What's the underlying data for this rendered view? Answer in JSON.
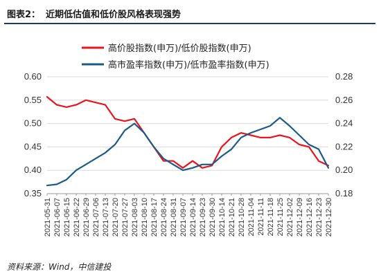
{
  "figure": {
    "label": "图表2：",
    "title": "近期低估值和低价股风格表现强势",
    "source": "资料来源：Wind，中信建投"
  },
  "chart_data": {
    "type": "line",
    "x": [
      "2021-05-31",
      "2021-06-07",
      "2021-06-15",
      "2021-06-22",
      "2021-06-29",
      "2021-07-06",
      "2021-07-13",
      "2021-07-20",
      "2021-07-27",
      "2021-08-03",
      "2021-08-10",
      "2021-08-17",
      "2021-08-24",
      "2021-08-31",
      "2021-09-07",
      "2021-09-14",
      "2021-09-23",
      "2021-09-30",
      "2021-10-14",
      "2021-10-21",
      "2021-10-28",
      "2021-11-04",
      "2021-11-11",
      "2021-11-18",
      "2021-11-25",
      "2021-12-02",
      "2021-12-09",
      "2021-12-16",
      "2021-12-23",
      "2021-12-30"
    ],
    "left_axis": {
      "ylim": [
        0.35,
        0.6
      ],
      "ticks": [
        "0.35",
        "0.40",
        "0.45",
        "0.50",
        "0.55",
        "0.60"
      ]
    },
    "right_axis": {
      "ylim": [
        0.18,
        0.28
      ],
      "ticks": [
        "0.18",
        "0.20",
        "0.22",
        "0.24",
        "0.26",
        "0.28"
      ]
    },
    "legend_placement": "top-center",
    "series": [
      {
        "name": "高价股指数(申万)/低价股指数(申万)",
        "axis": "left",
        "color": "#e8141e",
        "values": [
          0.557,
          0.54,
          0.535,
          0.54,
          0.55,
          0.545,
          0.54,
          0.51,
          0.505,
          0.51,
          0.48,
          0.45,
          0.42,
          0.42,
          0.405,
          0.42,
          0.405,
          0.41,
          0.45,
          0.47,
          0.48,
          0.475,
          0.47,
          0.47,
          0.475,
          0.47,
          0.455,
          0.45,
          0.42,
          0.41
        ]
      },
      {
        "name": "高市盈率指数(申万)/低市盈率指数(申万)",
        "axis": "right",
        "color": "#1c5a86",
        "values": [
          0.187,
          0.188,
          0.192,
          0.2,
          0.205,
          0.21,
          0.215,
          0.222,
          0.234,
          0.24,
          0.232,
          0.22,
          0.21,
          0.205,
          0.2,
          0.202,
          0.205,
          0.205,
          0.212,
          0.218,
          0.228,
          0.232,
          0.235,
          0.238,
          0.245,
          0.238,
          0.23,
          0.222,
          0.218,
          0.202
        ]
      }
    ]
  }
}
